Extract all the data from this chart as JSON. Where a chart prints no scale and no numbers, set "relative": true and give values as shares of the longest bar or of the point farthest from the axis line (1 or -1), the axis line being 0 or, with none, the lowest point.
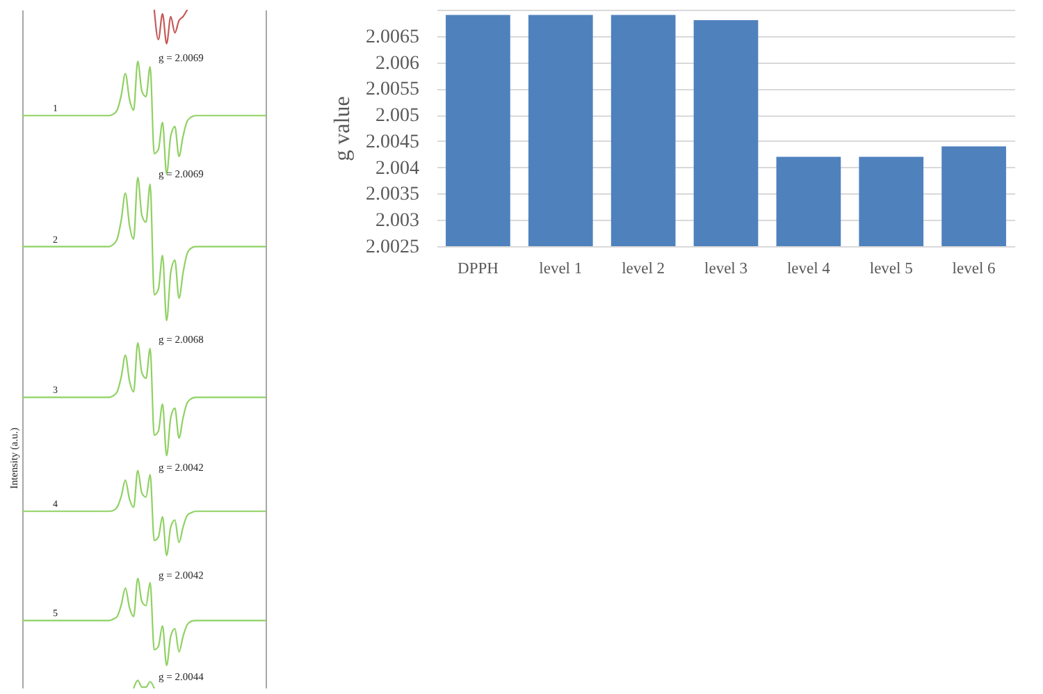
{
  "chart_data": [
    {
      "type": "line",
      "relative": true,
      "ylabel": "Intensity (a.u.)",
      "legend": false,
      "categories": [
        null,
        null,
        null,
        null,
        null,
        null,
        null,
        null,
        null,
        null,
        null,
        null,
        null,
        null,
        null,
        null,
        null,
        null,
        null,
        null,
        null,
        null,
        null,
        null,
        null,
        null,
        null,
        null,
        null,
        null,
        null,
        null,
        null,
        null,
        null,
        null,
        null,
        null,
        null,
        null,
        null,
        null,
        null,
        null,
        null,
        null,
        null,
        null,
        null,
        null,
        null,
        null,
        null,
        null,
        null,
        null,
        null,
        null,
        null,
        null
      ],
      "series": [
        {
          "color": "#c55a5a",
          "values": [
            null,
            null,
            null,
            null,
            null,
            null,
            null,
            null,
            null,
            null,
            null,
            null,
            null,
            null,
            null,
            null,
            null,
            null,
            null,
            null,
            null,
            null,
            null,
            null,
            null,
            null,
            null,
            null,
            null,
            null,
            null,
            null,
            1.0,
            0.956,
            0.994,
            0.95,
            0.99,
            0.966,
            0.984,
            0.99,
            1.0,
            null,
            null,
            null,
            null,
            null,
            null,
            null,
            null,
            null,
            null,
            null,
            null,
            null,
            null,
            null,
            null,
            null,
            null,
            null
          ]
        },
        {
          "name": "1",
          "color": "#8fd162",
          "values": [
            0.844,
            0.844,
            0.844,
            0.844,
            0.844,
            0.844,
            0.844,
            0.844,
            0.844,
            0.844,
            0.844,
            0.844,
            0.844,
            0.844,
            0.844,
            0.844,
            0.844,
            0.844,
            0.844,
            0.844,
            0.844,
            0.844,
            0.846,
            0.852,
            0.874,
            0.906,
            0.868,
            0.852,
            0.924,
            0.88,
            0.872,
            0.916,
            0.788,
            0.794,
            0.834,
            0.758,
            0.814,
            0.828,
            0.784,
            0.814,
            0.836,
            0.842,
            0.844,
            0.844,
            0.844,
            0.844,
            0.844,
            0.844,
            0.844,
            0.844,
            0.844,
            0.844,
            0.844,
            0.844,
            0.844,
            0.844,
            0.844,
            0.844,
            0.844,
            0.844
          ]
        },
        {
          "name": "2",
          "color": "#8fd162",
          "values": [
            0.651,
            0.651,
            0.651,
            0.651,
            0.651,
            0.651,
            0.651,
            0.651,
            0.651,
            0.651,
            0.651,
            0.651,
            0.651,
            0.651,
            0.651,
            0.651,
            0.651,
            0.651,
            0.651,
            0.651,
            0.651,
            0.651,
            0.654,
            0.662,
            0.69,
            0.73,
            0.682,
            0.662,
            0.753,
            0.697,
            0.687,
            0.743,
            0.58,
            0.588,
            0.638,
            0.542,
            0.613,
            0.631,
            0.575,
            0.613,
            0.641,
            0.649,
            0.651,
            0.651,
            0.651,
            0.651,
            0.651,
            0.651,
            0.651,
            0.651,
            0.651,
            0.651,
            0.651,
            0.651,
            0.651,
            0.651,
            0.651,
            0.651,
            0.651,
            0.651
          ]
        },
        {
          "name": "3",
          "color": "#8fd162",
          "values": [
            0.429,
            0.429,
            0.429,
            0.429,
            0.429,
            0.429,
            0.429,
            0.429,
            0.429,
            0.429,
            0.429,
            0.429,
            0.429,
            0.429,
            0.429,
            0.429,
            0.429,
            0.429,
            0.429,
            0.429,
            0.429,
            0.429,
            0.431,
            0.437,
            0.459,
            0.491,
            0.453,
            0.437,
            0.509,
            0.465,
            0.457,
            0.501,
            0.373,
            0.379,
            0.419,
            0.343,
            0.399,
            0.413,
            0.369,
            0.399,
            0.421,
            0.427,
            0.429,
            0.429,
            0.429,
            0.429,
            0.429,
            0.429,
            0.429,
            0.429,
            0.429,
            0.429,
            0.429,
            0.429,
            0.429,
            0.429,
            0.429,
            0.429,
            0.429,
            0.429
          ]
        },
        {
          "name": "4",
          "color": "#8fd162",
          "values": [
            0.261,
            0.261,
            0.261,
            0.261,
            0.261,
            0.261,
            0.261,
            0.261,
            0.261,
            0.261,
            0.261,
            0.261,
            0.261,
            0.261,
            0.261,
            0.261,
            0.261,
            0.261,
            0.261,
            0.261,
            0.261,
            0.261,
            0.262,
            0.267,
            0.283,
            0.307,
            0.279,
            0.267,
            0.321,
            0.288,
            0.282,
            0.315,
            0.218,
            0.223,
            0.253,
            0.196,
            0.238,
            0.248,
            0.215,
            0.238,
            0.255,
            0.259,
            0.261,
            0.261,
            0.261,
            0.261,
            0.261,
            0.261,
            0.261,
            0.261,
            0.261,
            0.261,
            0.261,
            0.261,
            0.261,
            0.261,
            0.261,
            0.261,
            0.261,
            0.261
          ]
        },
        {
          "name": "5",
          "color": "#8fd162",
          "values": [
            0.1,
            0.1,
            0.1,
            0.1,
            0.1,
            0.1,
            0.1,
            0.1,
            0.1,
            0.1,
            0.1,
            0.1,
            0.1,
            0.1,
            0.1,
            0.1,
            0.1,
            0.1,
            0.1,
            0.1,
            0.1,
            0.1,
            0.102,
            0.106,
            0.123,
            0.148,
            0.119,
            0.106,
            0.162,
            0.128,
            0.122,
            0.156,
            0.057,
            0.062,
            0.092,
            0.034,
            0.077,
            0.088,
            0.054,
            0.077,
            0.094,
            0.099,
            0.1,
            0.1,
            0.1,
            0.1,
            0.1,
            0.1,
            0.1,
            0.1,
            0.1,
            0.1,
            0.1,
            0.1,
            0.1,
            0.1,
            0.1,
            0.1,
            0.1,
            0.1
          ]
        },
        {
          "color": "#8fd162",
          "values": [
            null,
            null,
            null,
            null,
            null,
            null,
            null,
            null,
            null,
            null,
            null,
            null,
            null,
            null,
            null,
            null,
            null,
            null,
            null,
            null,
            null,
            null,
            null,
            null,
            null,
            null,
            null,
            0.0,
            0.012,
            0.002,
            0.002,
            0.01,
            0.0,
            null,
            null,
            null,
            null,
            null,
            null,
            null,
            null,
            null,
            null,
            null,
            null,
            null,
            null,
            null,
            null,
            null,
            null,
            null,
            null,
            null,
            null,
            null,
            null,
            null,
            null,
            null
          ]
        }
      ],
      "annotations": [
        "g = 2.0069",
        "g = 2.0069",
        "g = 2.0068",
        "g = 2.0042",
        "g = 2.0042",
        "g = 2.0044"
      ]
    },
    {
      "type": "bar",
      "ylabel": "g value",
      "categories": [
        "DPPH",
        "level 1",
        "level 2",
        "level 3",
        "level 4",
        "level 5",
        "level 6"
      ],
      "values": [
        2.0069,
        2.0069,
        2.0069,
        2.0068,
        2.0042,
        2.0042,
        2.0044
      ],
      "color": "#4f81bd",
      "ylim": [
        2.0025,
        2.007
      ],
      "yticks": [
        2.0025,
        2.003,
        2.0035,
        2.004,
        2.0045,
        2.005,
        2.0055,
        2.006,
        2.0065,
        {
          "value": 2.007,
          "label": null
        }
      ],
      "grid": "y"
    }
  ]
}
